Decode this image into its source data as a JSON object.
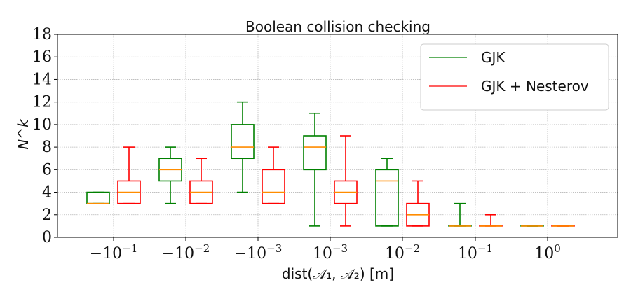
{
  "chart_data": {
    "type": "box",
    "title": "Boolean collision checking",
    "xlabel": "dist(𝒜₁, 𝒜₂) [m]",
    "ylabel": "N^k",
    "ylim": [
      0,
      18
    ],
    "yticks": [
      0,
      2,
      4,
      6,
      8,
      10,
      12,
      14,
      16,
      18
    ],
    "grid": true,
    "legend_position": "top-right",
    "categories": [
      {
        "base": "−10",
        "exp": "−1"
      },
      {
        "base": "−10",
        "exp": "−2"
      },
      {
        "base": "−10",
        "exp": "−3"
      },
      {
        "base": "10",
        "exp": "−3"
      },
      {
        "base": "10",
        "exp": "−2"
      },
      {
        "base": "10",
        "exp": "−1"
      },
      {
        "base": "10",
        "exp": "0"
      }
    ],
    "series": [
      {
        "name": "GJK",
        "color": "#008000",
        "boxes": [
          {
            "whislo": 3,
            "q1": 3,
            "med": 3,
            "q3": 4,
            "whishi": 4
          },
          {
            "whislo": 3,
            "q1": 5,
            "med": 6,
            "q3": 7,
            "whishi": 8
          },
          {
            "whislo": 4,
            "q1": 7,
            "med": 8,
            "q3": 10,
            "whishi": 12
          },
          {
            "whislo": 1,
            "q1": 6,
            "med": 8,
            "q3": 9,
            "whishi": 11
          },
          {
            "whislo": 1,
            "q1": 1,
            "med": 5,
            "q3": 6,
            "whishi": 7
          },
          {
            "whislo": 1,
            "q1": 1,
            "med": 1,
            "q3": 1,
            "whishi": 3
          },
          {
            "whislo": 1,
            "q1": 1,
            "med": 1,
            "q3": 1,
            "whishi": 1
          }
        ]
      },
      {
        "name": "GJK + Nesterov",
        "color": "#ff0000",
        "boxes": [
          {
            "whislo": 3,
            "q1": 3,
            "med": 4,
            "q3": 5,
            "whishi": 8
          },
          {
            "whislo": 3,
            "q1": 3,
            "med": 4,
            "q3": 5,
            "whishi": 7
          },
          {
            "whislo": 3,
            "q1": 3,
            "med": 4,
            "q3": 6,
            "whishi": 8
          },
          {
            "whislo": 1,
            "q1": 3,
            "med": 4,
            "q3": 5,
            "whishi": 9
          },
          {
            "whislo": 1,
            "q1": 1,
            "med": 2,
            "q3": 3,
            "whishi": 5
          },
          {
            "whislo": 1,
            "q1": 1,
            "med": 1,
            "q3": 1,
            "whishi": 2
          },
          {
            "whislo": 1,
            "q1": 1,
            "med": 1,
            "q3": 1,
            "whishi": 1
          }
        ]
      }
    ],
    "median_color": "#ff8c00",
    "grid_color": "#b8b8b8"
  }
}
